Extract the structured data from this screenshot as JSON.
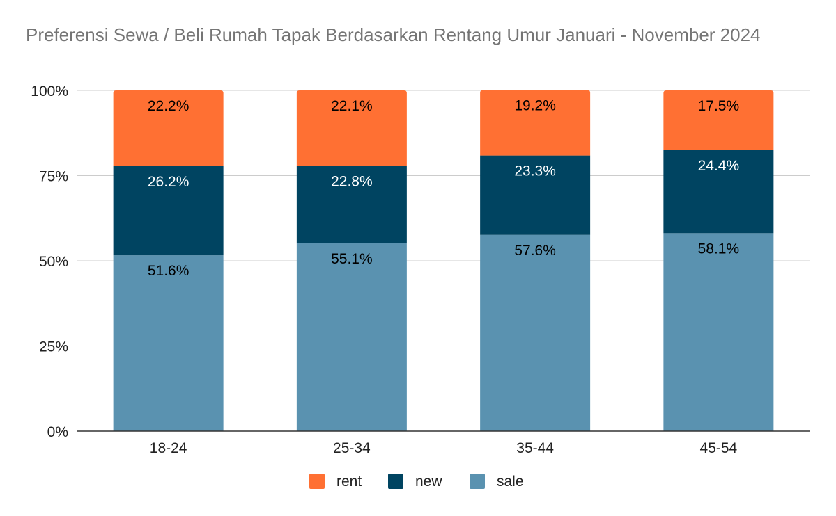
{
  "chart_data": {
    "type": "bar",
    "stacked": true,
    "percent_stacked": true,
    "title": "Preferensi Sewa / Beli Rumah Tapak Berdasarkan Rentang Umur Januari - November 2024",
    "xlabel": "",
    "ylabel": "",
    "categories": [
      "18-24",
      "25-34",
      "35-44",
      "45-54"
    ],
    "ylim": [
      0,
      100
    ],
    "yticks": [
      "0%",
      "25%",
      "50%",
      "75%",
      "100%"
    ],
    "grid": true,
    "legend_position": "bottom",
    "series": [
      {
        "name": "sale",
        "color": "#5a92b0",
        "label_color": "#000000",
        "values": [
          51.6,
          55.1,
          57.6,
          58.1
        ],
        "labels": [
          "51.6%",
          "55.1%",
          "57.6%",
          "58.1%"
        ]
      },
      {
        "name": "new",
        "color": "#004461",
        "label_color": "#ffffff",
        "values": [
          26.2,
          22.8,
          23.3,
          24.4
        ],
        "labels": [
          "26.2%",
          "22.8%",
          "23.3%",
          "24.4%"
        ]
      },
      {
        "name": "rent",
        "color": "#ff7033",
        "label_color": "#000000",
        "values": [
          22.2,
          22.1,
          19.2,
          17.5
        ],
        "labels": [
          "22.2%",
          "22.1%",
          "19.2%",
          "17.5%"
        ]
      }
    ],
    "legend_order": [
      "rent",
      "new",
      "sale"
    ]
  }
}
